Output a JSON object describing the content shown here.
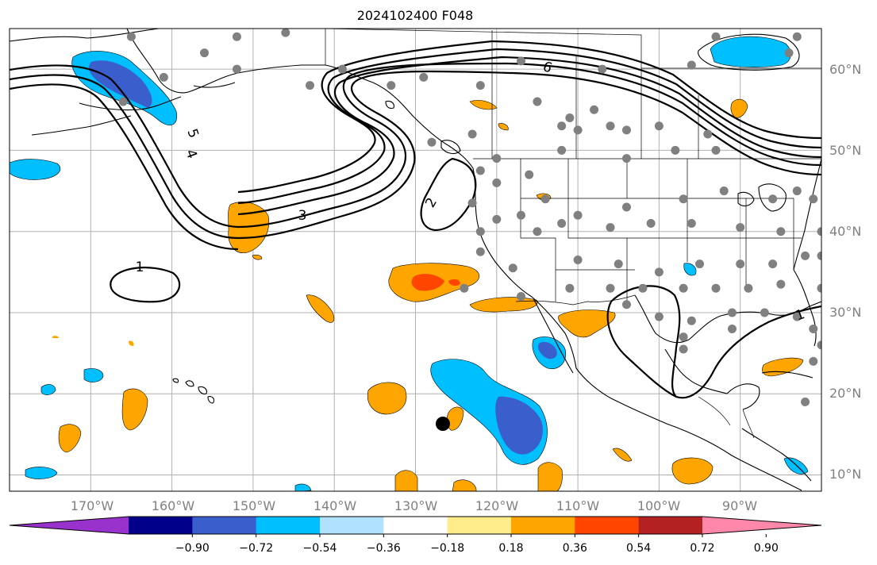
{
  "figure": {
    "title": "2024102400 F048"
  },
  "chart_data": {
    "type": "filled-contour map",
    "title": "2024102400 F048",
    "projection": "PlateCarree",
    "lon_range": [
      -180,
      -80
    ],
    "lat_range": [
      8,
      65
    ],
    "grid": true,
    "lon_ticks": [
      "170°W",
      "160°W",
      "150°W",
      "140°W",
      "130°W",
      "120°W",
      "110°W",
      "100°W",
      "90°W"
    ],
    "lat_ticks": [
      "60°N",
      "50°N",
      "40°N",
      "30°N",
      "20°N",
      "10°N"
    ],
    "contour_labels": [
      "1",
      "2",
      "3",
      "4",
      "5",
      "6",
      "1"
    ],
    "colorbar": {
      "orientation": "horizontal",
      "extend": "both",
      "levels": [
        -0.9,
        -0.72,
        -0.54,
        -0.36,
        -0.18,
        0.18,
        0.36,
        0.54,
        0.72,
        0.9
      ],
      "tick_labels": [
        "−0.90",
        "−0.72",
        "−0.54",
        "−0.36",
        "−0.18",
        "0.18",
        "0.36",
        "0.54",
        "0.72",
        "0.90"
      ],
      "colors": [
        "#9932cc",
        "#00008b",
        "#3a5fcd",
        "#00bfff",
        "#b0e2ff",
        "#ffffff",
        "#ffec8b",
        "#ffa500",
        "#ff4500",
        "#b22222",
        "#ff88aa"
      ]
    },
    "stations_color": "#808080",
    "marker_color": "#000000"
  }
}
